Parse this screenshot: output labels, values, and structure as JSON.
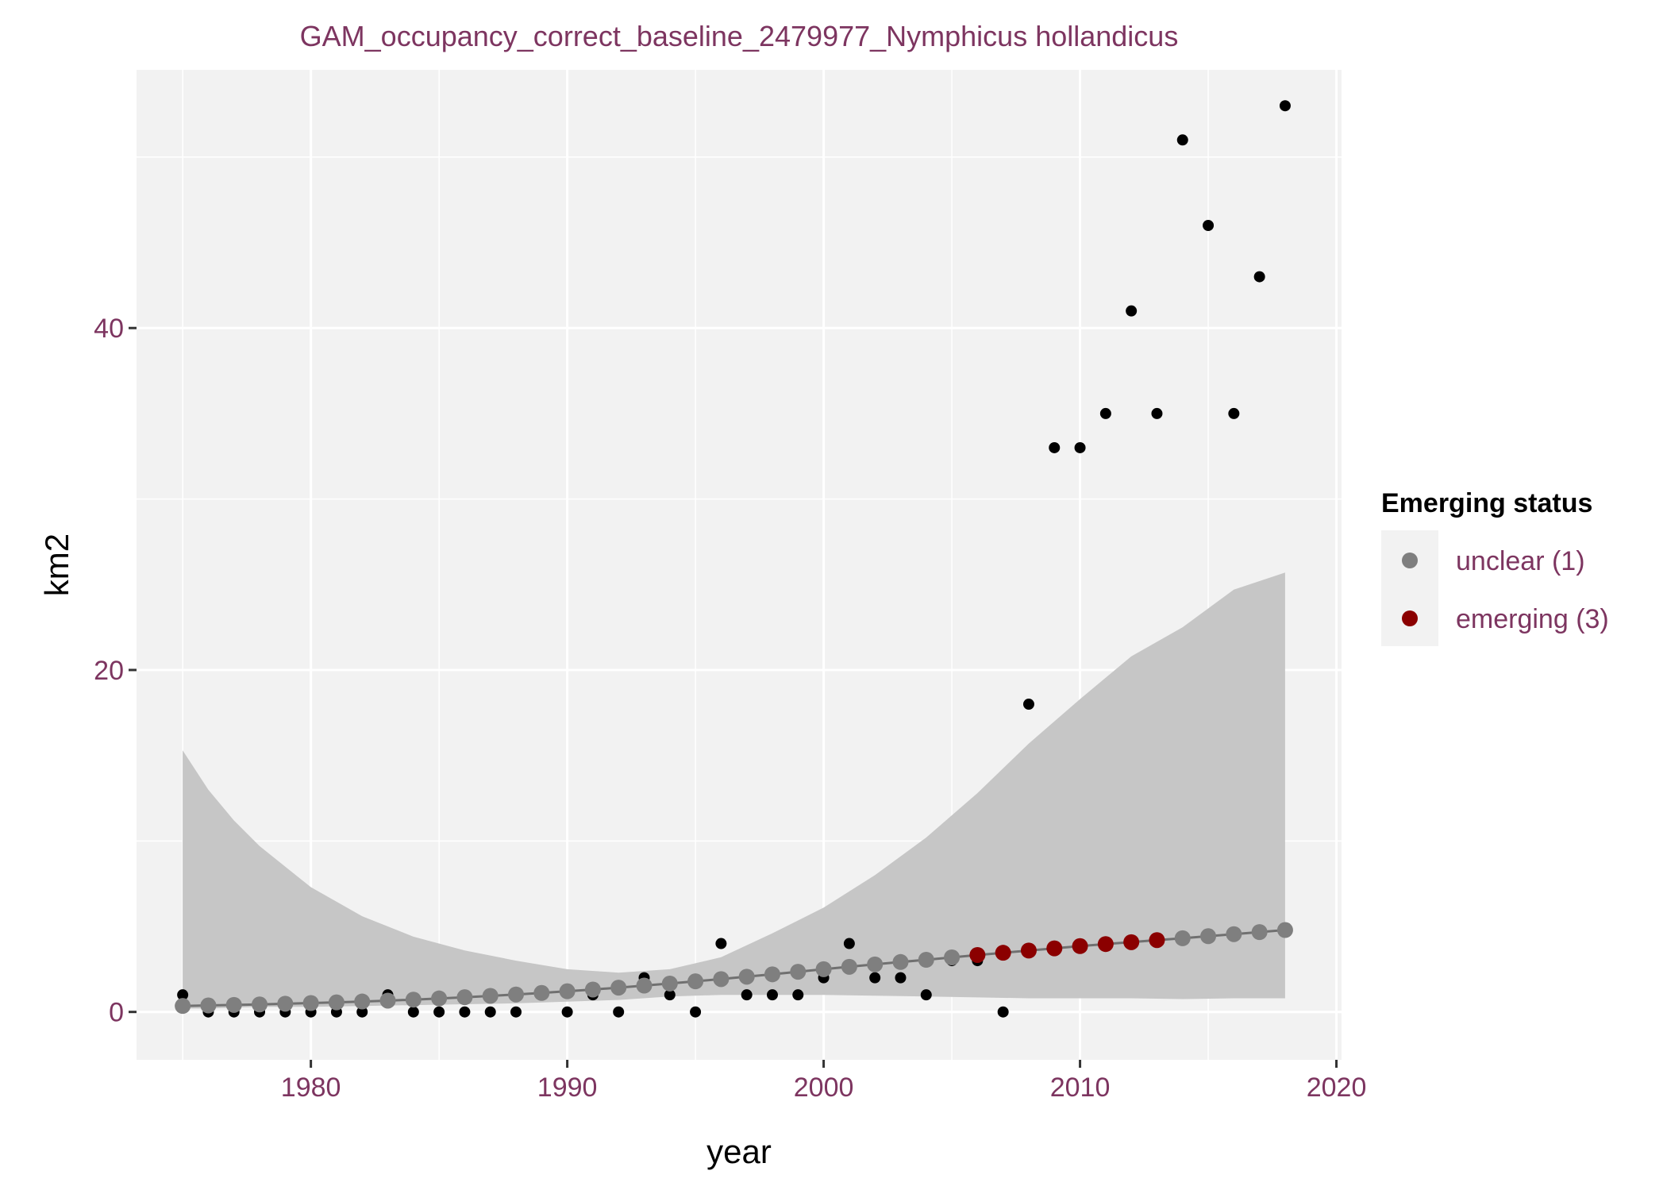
{
  "chart_data": {
    "type": "scatter",
    "title": "GAM_occupancy_correct_baseline_2479977_Nymphicus hollandicus",
    "xlabel": "year",
    "ylabel": "km2",
    "xlim": [
      1973.2,
      2020.2
    ],
    "ylim": [
      -2.8,
      55.1
    ],
    "x_ticks": [
      1980,
      1990,
      2000,
      2010,
      2020
    ],
    "x_tick_labels": [
      "1980",
      "1990",
      "2000",
      "2010",
      "2020"
    ],
    "y_ticks": [
      0,
      20,
      40
    ],
    "y_tick_labels": [
      "0",
      "20",
      "40"
    ],
    "x_minor_breaks": [
      1975,
      1985,
      1995,
      2005,
      2015
    ],
    "y_minor_breaks": [
      10,
      30,
      50
    ],
    "grid": true,
    "legend": {
      "title": "Emerging status",
      "position": "right",
      "entries": [
        {
          "label": "unclear (1)",
          "color": "#7f7f7f"
        },
        {
          "label": "emerging (3)",
          "color": "#8b0000"
        }
      ]
    },
    "colors": {
      "title_and_ticks": "#7d3560",
      "panel": "#f2f2f2",
      "grid": "#ffffff",
      "ribbon": "#c6c6c6",
      "line": "#707070",
      "observed": "#000000",
      "unclear": "#7f7f7f",
      "emerging": "#8b0000"
    },
    "observed": {
      "x": [
        1975,
        1976,
        1977,
        1978,
        1979,
        1980,
        1981,
        1982,
        1983,
        1984,
        1985,
        1986,
        1987,
        1988,
        1989,
        1990,
        1991,
        1992,
        1993,
        1994,
        1995,
        1996,
        1997,
        1998,
        1999,
        2000,
        2001,
        2002,
        2003,
        2004,
        2005,
        2006,
        2007,
        2008,
        2009,
        2010,
        2011,
        2012,
        2013,
        2014,
        2015,
        2016,
        2017,
        2018
      ],
      "y": [
        1,
        0,
        0,
        0,
        0,
        0,
        0,
        0,
        1,
        0,
        0,
        0,
        0,
        0,
        1,
        0,
        1,
        0,
        2,
        1,
        0,
        4,
        1,
        1,
        1,
        2,
        4,
        2,
        2,
        1,
        3,
        3,
        0,
        18,
        33,
        33,
        35,
        41,
        35,
        51,
        46,
        35,
        43,
        53
      ]
    },
    "fitted": {
      "x": [
        1975,
        1976,
        1977,
        1978,
        1979,
        1980,
        1981,
        1982,
        1983,
        1984,
        1985,
        1986,
        1987,
        1988,
        1989,
        1990,
        1991,
        1992,
        1993,
        1994,
        1995,
        1996,
        1997,
        1998,
        1999,
        2000,
        2001,
        2002,
        2003,
        2004,
        2005,
        2006,
        2007,
        2008,
        2009,
        2010,
        2011,
        2012,
        2013,
        2014,
        2015,
        2016,
        2017,
        2018
      ],
      "y": [
        0.35,
        0.38,
        0.41,
        0.44,
        0.48,
        0.52,
        0.56,
        0.61,
        0.66,
        0.72,
        0.79,
        0.86,
        0.94,
        1.02,
        1.11,
        1.21,
        1.31,
        1.42,
        1.54,
        1.66,
        1.79,
        1.92,
        2.06,
        2.2,
        2.35,
        2.5,
        2.64,
        2.78,
        2.92,
        3.05,
        3.19,
        3.33,
        3.46,
        3.59,
        3.72,
        3.85,
        3.97,
        4.08,
        4.2,
        4.31,
        4.43,
        4.55,
        4.67,
        4.79
      ],
      "status": [
        "unclear",
        "unclear",
        "unclear",
        "unclear",
        "unclear",
        "unclear",
        "unclear",
        "unclear",
        "unclear",
        "unclear",
        "unclear",
        "unclear",
        "unclear",
        "unclear",
        "unclear",
        "unclear",
        "unclear",
        "unclear",
        "unclear",
        "unclear",
        "unclear",
        "unclear",
        "unclear",
        "unclear",
        "unclear",
        "unclear",
        "unclear",
        "unclear",
        "unclear",
        "unclear",
        "unclear",
        "emerging",
        "emerging",
        "emerging",
        "emerging",
        "emerging",
        "emerging",
        "emerging",
        "emerging",
        "unclear",
        "unclear",
        "unclear",
        "unclear",
        "unclear"
      ]
    },
    "confidence_band": {
      "x": [
        1975,
        1976,
        1977,
        1978,
        1980,
        1982,
        1984,
        1986,
        1988,
        1990,
        1992,
        1994,
        1996,
        1998,
        2000,
        2002,
        2004,
        2006,
        2008,
        2010,
        2012,
        2014,
        2016,
        2018
      ],
      "upper": [
        15.3,
        13.0,
        11.2,
        9.7,
        7.3,
        5.6,
        4.4,
        3.6,
        3.0,
        2.5,
        2.3,
        2.5,
        3.2,
        4.6,
        6.1,
        8.0,
        10.2,
        12.8,
        15.7,
        18.3,
        20.8,
        22.5,
        24.7,
        25.7
      ],
      "lower": [
        0.2,
        0.2,
        0.25,
        0.3,
        0.3,
        0.35,
        0.4,
        0.45,
        0.5,
        0.6,
        0.7,
        0.9,
        1.0,
        1.0,
        1.0,
        0.95,
        0.9,
        0.85,
        0.8,
        0.8,
        0.8,
        0.75,
        0.8,
        0.8
      ]
    }
  }
}
